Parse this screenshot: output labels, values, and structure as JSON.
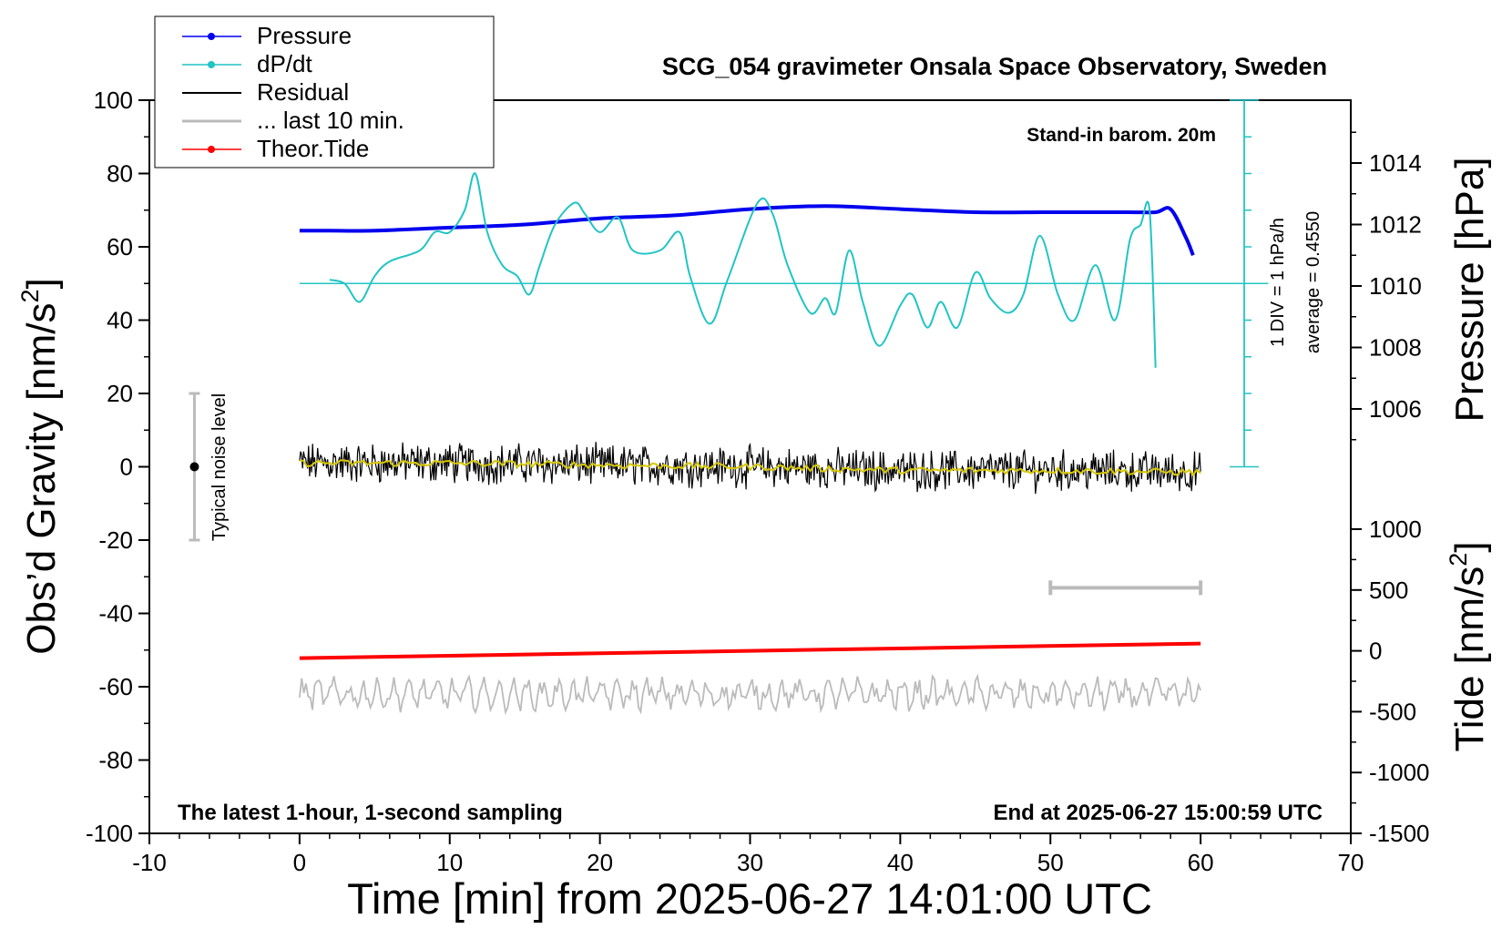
{
  "chart_data": {
    "type": "line",
    "title": "SCG_054 gravimeter Onsala Space Observatory, Sweden",
    "note_top_right": "Stand-in barom. 20m",
    "note_bottom_left": "The latest 1-hour, 1-second sampling",
    "note_bottom_right": "End at 2025-06-27 15:00:59 UTC",
    "xlabel": "Time [min] from 2025-06-27 14:01:00 UTC",
    "ylabel_left_prefix": "Obs’d Gravity [nm/s",
    "ylabel_left_sup": "2",
    "ylabel_left_suffix": "]",
    "ylabel_right_pressure": "Pressure [hPa]",
    "ylabel_right_tide_prefix": "Tide [nm/s",
    "ylabel_right_tide_sup": "2",
    "ylabel_right_tide_suffix": "]",
    "dpdt_scale_label": "1 DIV = 1 hPa/h",
    "dpdt_average_label": "average = 0.4550",
    "noise_label": "Typical noise level",
    "xlim": [
      -10,
      70
    ],
    "ylim": [
      -100,
      100
    ],
    "pressure_lim": [
      1002,
      1016
    ],
    "tide_lim": [
      -1500,
      1000
    ],
    "x_ticks": [
      "-10",
      "0",
      "10",
      "20",
      "30",
      "40",
      "50",
      "60",
      "70"
    ],
    "y_ticks": [
      "100",
      "80",
      "60",
      "40",
      "20",
      "0",
      "-20",
      "-40",
      "-60",
      "-80",
      "-100"
    ],
    "pressure_ticks": [
      "1014",
      "1012",
      "1010",
      "1008",
      "1006"
    ],
    "tide_ticks": [
      "1000",
      "500",
      "0",
      "-500",
      "-1000",
      "-1500"
    ],
    "legend": [
      {
        "name": "Pressure",
        "color": "#0000ee",
        "marker": true
      },
      {
        "name": "dP/dt",
        "color": "#22c4c4",
        "marker": true
      },
      {
        "name": "Residual",
        "color": "#000000",
        "marker": false
      },
      {
        "name": "... last 10 min.",
        "color": "#bbbbbb",
        "marker": false
      },
      {
        "name": "Theor.Tide",
        "color": "#ff0000",
        "marker": true
      }
    ],
    "legend_placement": "top-left",
    "series": [
      {
        "name": "Pressure",
        "axis": "pressure",
        "x": [
          0,
          2,
          5,
          10,
          15,
          20,
          25,
          30,
          35,
          40,
          45,
          50,
          55,
          57,
          58,
          59,
          59.5
        ],
        "y": [
          1011.8,
          1011.8,
          1011.8,
          1011.9,
          1012.0,
          1012.2,
          1012.3,
          1012.5,
          1012.6,
          1012.5,
          1012.4,
          1012.4,
          1012.4,
          1012.4,
          1012.5,
          1011.6,
          1011.0
        ]
      },
      {
        "name": "dP/dt",
        "axis": "gravity",
        "x": [
          2,
          3,
          4,
          5,
          6,
          8,
          9,
          10,
          11,
          11.7,
          12.5,
          13.5,
          14.5,
          15.3,
          16,
          17,
          18.3,
          19,
          20,
          21.2,
          22.2,
          24,
          25.3,
          26,
          27.3,
          28.5,
          30.5,
          31.5,
          32.5,
          34,
          35,
          35.7,
          36.6,
          37.5,
          38.6,
          40,
          40.8,
          41.8,
          42.7,
          43.8,
          45,
          46,
          47.2,
          48.2,
          49.3,
          50.5,
          51.6,
          53,
          54.3,
          55.3,
          56,
          56.6,
          57
        ],
        "y": [
          51,
          50,
          45,
          52,
          56,
          59,
          64,
          64,
          70,
          80,
          64,
          55,
          52,
          47,
          55,
          66,
          72,
          69,
          64,
          68,
          59,
          59,
          64,
          52,
          39,
          51,
          72,
          69,
          55,
          42,
          46,
          42,
          59,
          45,
          33,
          44,
          47,
          38,
          45,
          38,
          53,
          46,
          42,
          47,
          63,
          47,
          40,
          55,
          40,
          62,
          66,
          70,
          27
        ]
      },
      {
        "name": "Residual",
        "axis": "gravity",
        "x": [
          0,
          10,
          20,
          30,
          40,
          50,
          60
        ],
        "y": [
          1,
          1,
          0.5,
          0,
          -1,
          -1,
          -1.5
        ]
      },
      {
        "name": "... last 10 min.",
        "axis": "gravity",
        "x": [
          0,
          10,
          20,
          30,
          40,
          50,
          60
        ],
        "y": [
          -62,
          -62,
          -62,
          -62,
          -62,
          -62,
          -62
        ]
      },
      {
        "name": "Theor.Tide",
        "axis": "tide",
        "x": [
          0,
          60
        ],
        "y": [
          -60,
          60
        ]
      }
    ],
    "dpdt_zero_line": 50,
    "noise_bar": {
      "x": -7,
      "center": 0,
      "half_range": 20
    },
    "last10_bar": {
      "x_start": 50,
      "x_end": 60,
      "y": -33
    },
    "grid": false
  }
}
